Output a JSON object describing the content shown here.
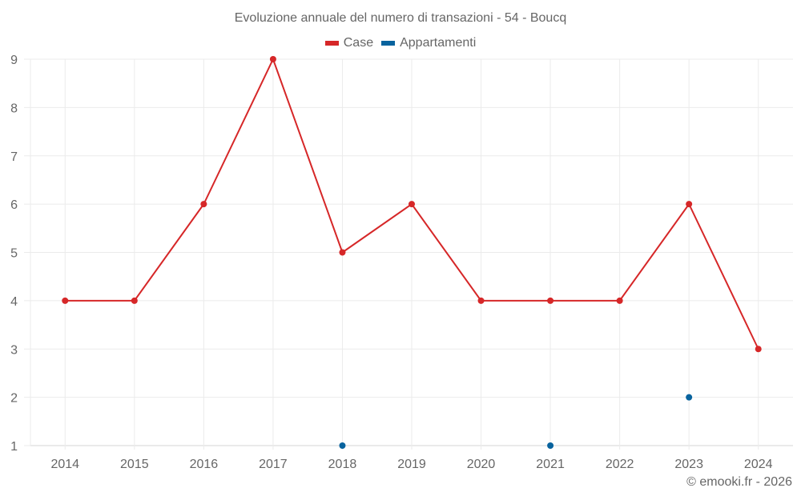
{
  "chart_data": {
    "type": "line",
    "title": "Evoluzione annuale del numero di transazioni - 54 - Boucq",
    "xlabel": "",
    "ylabel": "",
    "categories": [
      "2014",
      "2015",
      "2016",
      "2017",
      "2018",
      "2019",
      "2020",
      "2021",
      "2022",
      "2023",
      "2024"
    ],
    "series": [
      {
        "name": "Case",
        "color": "#d62728",
        "values": [
          4,
          4,
          6,
          9,
          5,
          6,
          4,
          4,
          4,
          6,
          3
        ]
      },
      {
        "name": "Appartamenti",
        "color": "#08639e",
        "values": [
          null,
          null,
          null,
          null,
          1,
          null,
          null,
          1,
          null,
          2,
          null
        ]
      }
    ],
    "ylim": [
      1,
      9
    ],
    "yticks": [
      1,
      2,
      3,
      4,
      5,
      6,
      7,
      8,
      9
    ],
    "grid": true,
    "legend_position": "top"
  },
  "credit": "© emooki.fr - 2026"
}
